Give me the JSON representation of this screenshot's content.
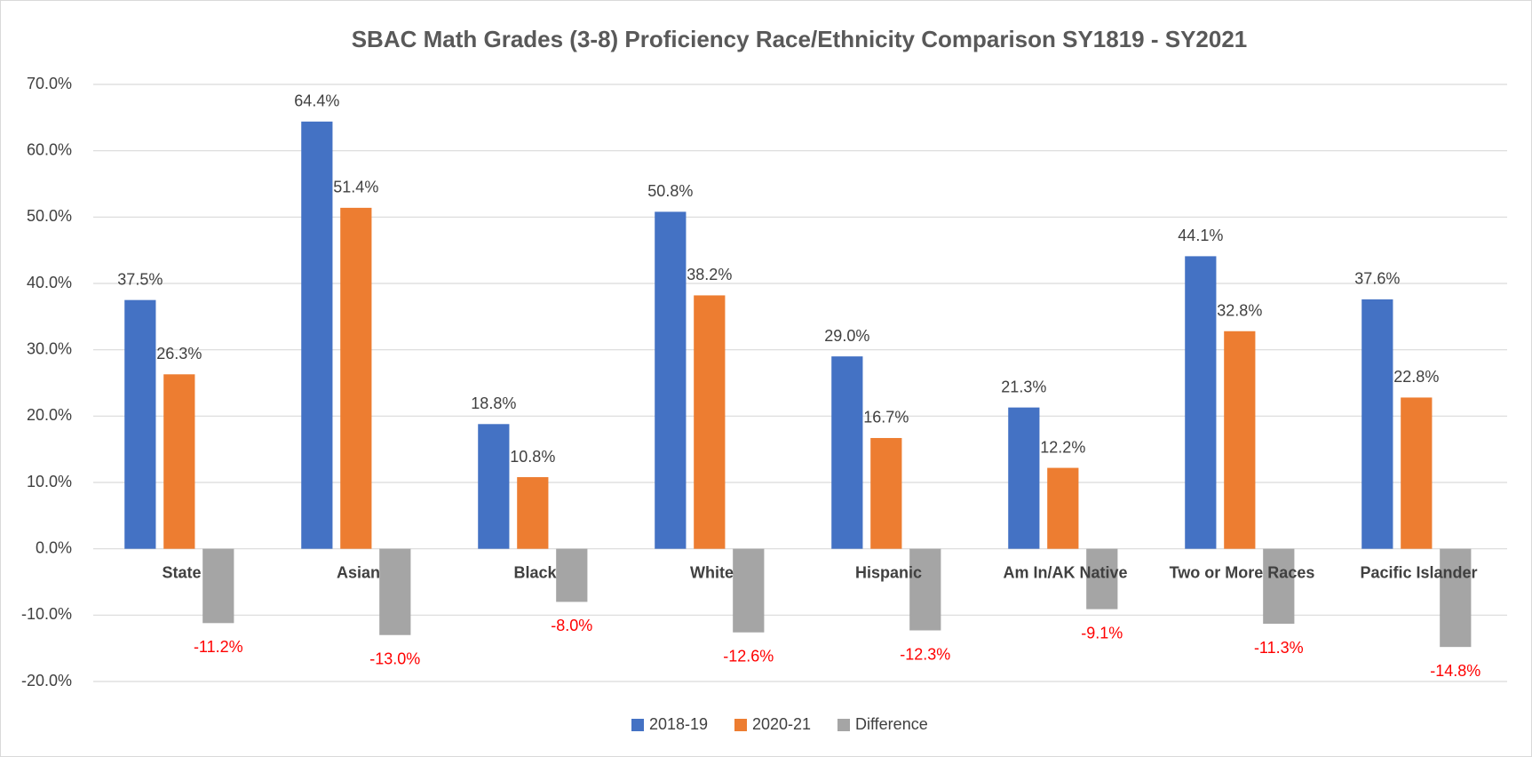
{
  "chart_data": {
    "type": "bar",
    "title": "SBAC Math Grades (3-8) Proficiency Race/Ethnicity Comparison SY1819 - SY2021",
    "categories": [
      "State",
      "Asian",
      "Black",
      "White",
      "Hispanic",
      "Am In/AK Native",
      "Two or More Races",
      "Pacific Islander"
    ],
    "series": [
      {
        "name": "2018-19",
        "color": "#4472c4",
        "values": [
          37.5,
          64.4,
          18.8,
          50.8,
          29.0,
          21.3,
          44.1,
          37.6
        ],
        "value_labels": [
          "37.5%",
          "64.4%",
          "18.8%",
          "50.8%",
          "29.0%",
          "21.3%",
          "44.1%",
          "37.6%"
        ]
      },
      {
        "name": "2020-21",
        "color": "#ed7d31",
        "values": [
          26.3,
          51.4,
          10.8,
          38.2,
          16.7,
          12.2,
          32.8,
          22.8
        ],
        "value_labels": [
          "26.3%",
          "51.4%",
          "10.8%",
          "38.2%",
          "16.7%",
          "12.2%",
          "32.8%",
          "22.8%"
        ]
      },
      {
        "name": "Difference",
        "color": "#a5a5a5",
        "label_color": "#ff0000",
        "values": [
          -11.2,
          -13.0,
          -8.0,
          -12.6,
          -12.3,
          -9.1,
          -11.3,
          -14.8
        ],
        "value_labels": [
          "-11.2%",
          "-13.0%",
          "-8.0%",
          "-12.6%",
          "-12.3%",
          "-9.1%",
          "-11.3%",
          "-14.8%"
        ]
      }
    ],
    "ylim": [
      -20,
      70
    ],
    "yticks": [
      {
        "value": -20,
        "label": "-20.0%"
      },
      {
        "value": -10,
        "label": "-10.0%"
      },
      {
        "value": 0,
        "label": "0.0%"
      },
      {
        "value": 10,
        "label": "10.0%"
      },
      {
        "value": 20,
        "label": "20.0%"
      },
      {
        "value": 30,
        "label": "30.0%"
      },
      {
        "value": 40,
        "label": "40.0%"
      },
      {
        "value": 50,
        "label": "50.0%"
      },
      {
        "value": 60,
        "label": "60.0%"
      },
      {
        "value": 70,
        "label": "70.0%"
      }
    ],
    "grid": true,
    "legend": "bottom"
  }
}
